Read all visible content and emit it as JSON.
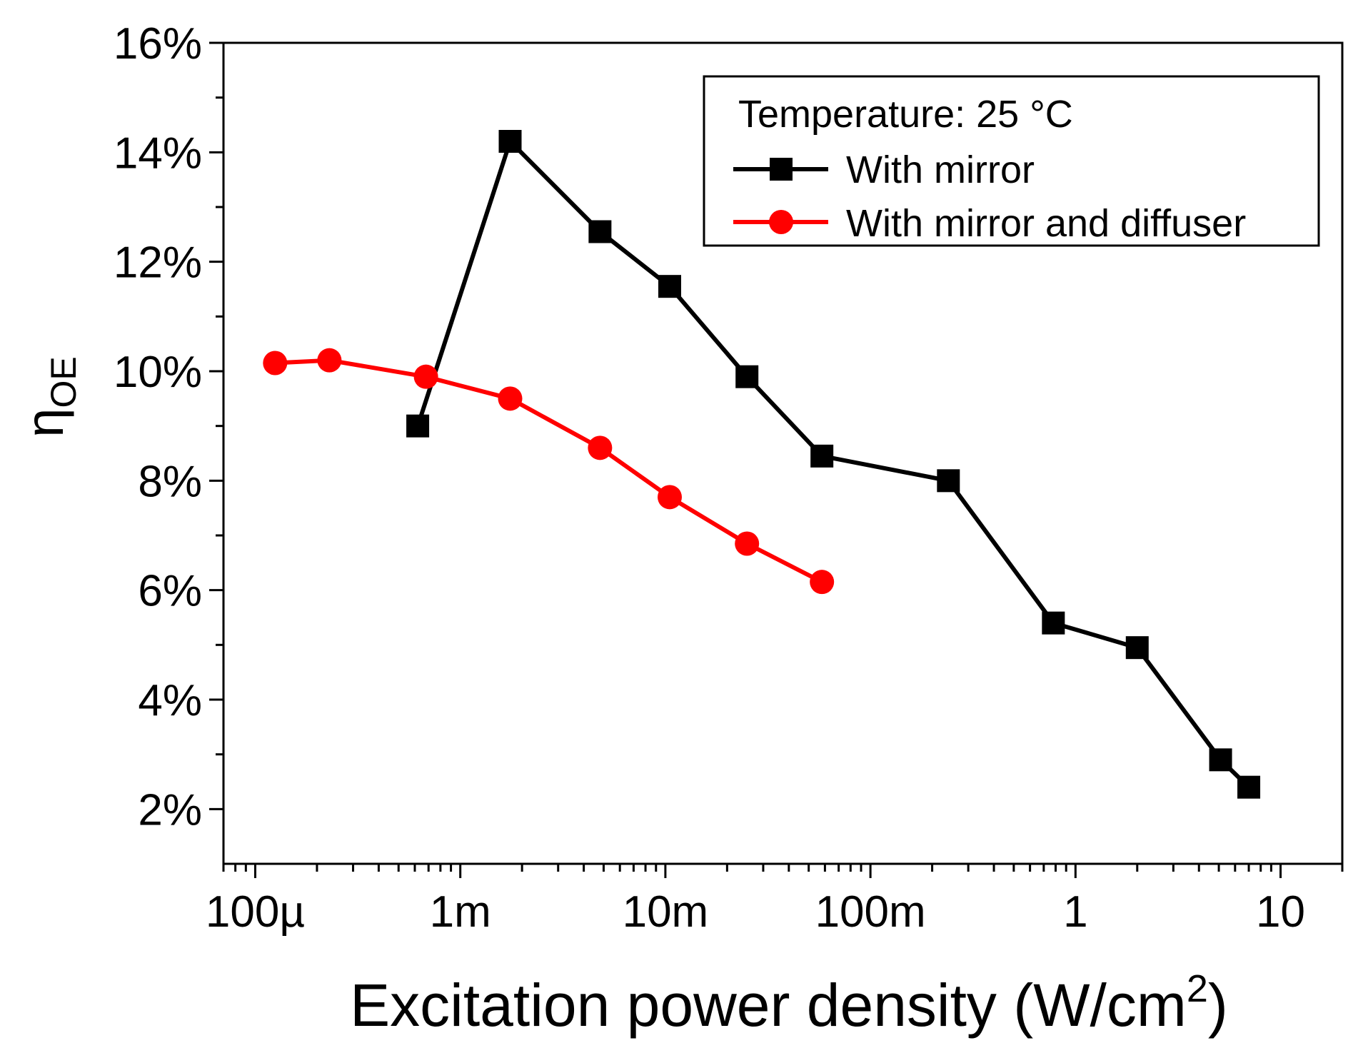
{
  "chart_data": {
    "type": "line",
    "title": "",
    "xlabel": "Excitation power density (W/cm",
    "xlabel_sup": "2",
    "xlabel_close": ")",
    "ylabel": "η",
    "ylabel_sub": "OE",
    "xscale": "log",
    "xlim": [
      7e-05,
      20
    ],
    "ylim": [
      1.0,
      16.0
    ],
    "x_ticks": [
      {
        "value": 0.0001,
        "label": "100µ"
      },
      {
        "value": 0.001,
        "label": "1m"
      },
      {
        "value": 0.01,
        "label": "10m"
      },
      {
        "value": 0.1,
        "label": "100m"
      },
      {
        "value": 1,
        "label": "1"
      },
      {
        "value": 10,
        "label": "10"
      }
    ],
    "y_ticks": [
      {
        "value": 2,
        "label": "2%"
      },
      {
        "value": 4,
        "label": "4%"
      },
      {
        "value": 6,
        "label": "6%"
      },
      {
        "value": 8,
        "label": "8%"
      },
      {
        "value": 10,
        "label": "10%"
      },
      {
        "value": 12,
        "label": "12%"
      },
      {
        "value": 14,
        "label": "14%"
      },
      {
        "value": 16,
        "label": "16%"
      }
    ],
    "y_minor_ticks": [
      3,
      5,
      7,
      9,
      11,
      13,
      15
    ],
    "grid": false,
    "legend": {
      "position": "top-right",
      "title": "Temperature: 25 °C"
    },
    "series": [
      {
        "name": "With mirror",
        "color": "#000000",
        "marker": "square",
        "x": [
          0.00062,
          0.00175,
          0.0048,
          0.0105,
          0.025,
          0.058,
          0.24,
          0.78,
          2.0,
          5.1,
          7.0
        ],
        "y": [
          9.0,
          14.2,
          12.55,
          11.55,
          9.9,
          8.45,
          8.0,
          5.4,
          4.95,
          2.9,
          2.4
        ]
      },
      {
        "name": "With mirror and diffuser",
        "color": "#ff0000",
        "marker": "circle",
        "x": [
          0.000125,
          0.00023,
          0.00068,
          0.00175,
          0.0048,
          0.0105,
          0.025,
          0.058
        ],
        "y": [
          10.15,
          10.2,
          9.9,
          9.5,
          8.6,
          7.7,
          6.85,
          6.15
        ]
      }
    ]
  }
}
